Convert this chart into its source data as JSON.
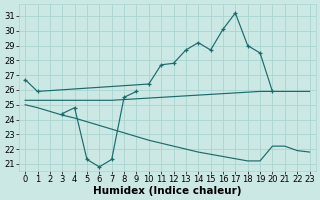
{
  "bg_color": "#cce8e5",
  "grid_color": "#aad4d0",
  "line_color": "#1a6b6b",
  "xlabel": "Humidex (Indice chaleur)",
  "xlabel_fontsize": 7.5,
  "tick_fontsize": 6,
  "xlim": [
    -0.5,
    23.5
  ],
  "ylim": [
    20.5,
    31.8
  ],
  "yticks": [
    21,
    22,
    23,
    24,
    25,
    26,
    27,
    28,
    29,
    30,
    31
  ],
  "xticks": [
    0,
    1,
    2,
    3,
    4,
    5,
    6,
    7,
    8,
    9,
    10,
    11,
    12,
    13,
    14,
    15,
    16,
    17,
    18,
    19,
    20,
    21,
    22,
    23
  ],
  "lines": [
    {
      "x": [
        0,
        1,
        10,
        11,
        12,
        13,
        14,
        15,
        16,
        17,
        18,
        19,
        20
      ],
      "y": [
        26.7,
        25.9,
        26.4,
        27.7,
        27.8,
        28.7,
        29.2,
        28.7,
        30.1,
        31.2,
        29.0,
        28.5,
        25.9
      ],
      "marker": true
    },
    {
      "x": [
        3,
        4,
        5,
        6,
        7,
        8,
        9
      ],
      "y": [
        24.4,
        24.8,
        21.3,
        20.8,
        21.3,
        25.5,
        25.9
      ],
      "marker": true
    },
    {
      "x": [
        0,
        1,
        2,
        3,
        4,
        5,
        6,
        7,
        8,
        9,
        10,
        11,
        12,
        13,
        14,
        15,
        16,
        17,
        18,
        19,
        20,
        21,
        22,
        23
      ],
      "y": [
        25.3,
        25.3,
        25.3,
        25.3,
        25.3,
        25.3,
        25.3,
        25.3,
        25.35,
        25.4,
        25.45,
        25.5,
        25.55,
        25.6,
        25.65,
        25.7,
        25.75,
        25.8,
        25.85,
        25.9,
        25.9,
        25.9,
        25.9,
        25.9
      ],
      "marker": false
    },
    {
      "x": [
        0,
        1,
        2,
        3,
        4,
        5,
        6,
        7,
        8,
        9,
        10,
        11,
        12,
        13,
        14,
        15,
        16,
        17,
        18,
        19,
        20,
        21,
        22,
        23
      ],
      "y": [
        25.0,
        24.8,
        24.55,
        24.3,
        24.1,
        23.85,
        23.6,
        23.35,
        23.1,
        22.85,
        22.6,
        22.4,
        22.2,
        22.0,
        21.8,
        21.65,
        21.5,
        21.35,
        21.2,
        21.2,
        22.2,
        22.2,
        21.9,
        21.8
      ],
      "marker": false
    }
  ]
}
